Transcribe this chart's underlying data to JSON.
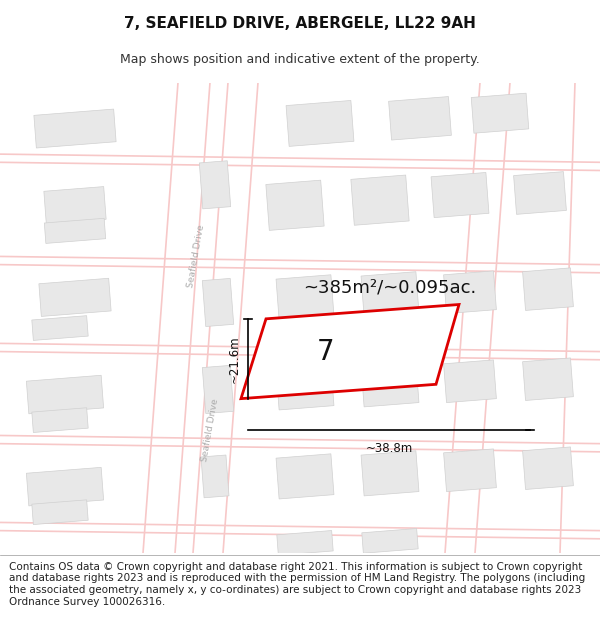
{
  "title": "7, SEAFIELD DRIVE, ABERGELE, LL22 9AH",
  "subtitle": "Map shows position and indicative extent of the property.",
  "footer": "Contains OS data © Crown copyright and database right 2021. This information is subject to Crown copyright and database rights 2023 and is reproduced with the permission of HM Land Registry. The polygons (including the associated geometry, namely x, y co-ordinates) are subject to Crown copyright and database rights 2023 Ordnance Survey 100026316.",
  "area_text": "~385m²/~0.095ac.",
  "width_text": "~38.8m",
  "height_text": "~21.6m",
  "label": "7",
  "bg_color": "#ffffff",
  "road_color": "#f7c8c8",
  "road_lw": 0.8,
  "building_color": "#e8e8e8",
  "building_outline": "#d0d0d0",
  "plot_fill": "#ffffff",
  "plot_outline": "#dd0000",
  "plot_lw": 2.0,
  "road_label_color": "#aaaaaa",
  "title_fontsize": 11,
  "subtitle_fontsize": 9,
  "footer_fontsize": 7.5,
  "annotation_fontsize": 8.5,
  "area_fontsize": 13,
  "label_fontsize": 20
}
